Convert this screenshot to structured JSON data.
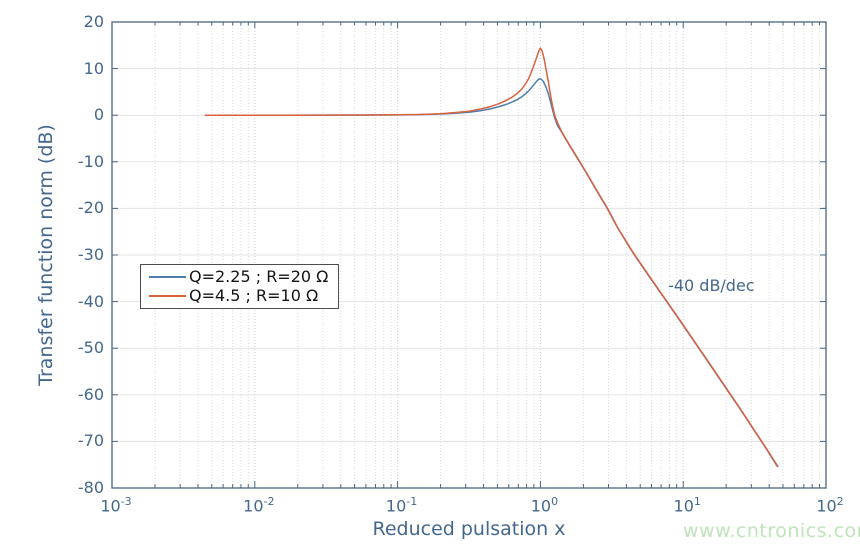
{
  "chart_data": {
    "type": "line",
    "title": "",
    "xlabel": "Reduced pulsation x",
    "ylabel": "Transfer function norm (dB)",
    "x_scale": "log10",
    "xlim_exponents": [
      -3,
      2
    ],
    "ylim": [
      -80,
      20
    ],
    "x_tick_exponents": [
      -3,
      -2,
      -1,
      0,
      1,
      2
    ],
    "y_ticks": [
      20,
      10,
      0,
      -10,
      -20,
      -30,
      -40,
      -50,
      -60,
      -70,
      -80
    ],
    "grid": "on",
    "legend_position": "middle-left",
    "annotation": {
      "text": "-40 dB/dec",
      "log10_x": 0.894,
      "db": -36.9
    },
    "series": [
      {
        "name": "Q=2.25 ; R=20 Ω",
        "color": "#4d7dad",
        "points_log10x_db": [
          [
            -2.35,
            0
          ],
          [
            -2.1,
            0
          ],
          [
            -1.8,
            0.01
          ],
          [
            -1.5,
            0.02
          ],
          [
            -1.2,
            0.04
          ],
          [
            -1.0,
            0.07
          ],
          [
            -0.85,
            0.13
          ],
          [
            -0.7,
            0.26
          ],
          [
            -0.6,
            0.42
          ],
          [
            -0.5,
            0.65
          ],
          [
            -0.42,
            0.95
          ],
          [
            -0.35,
            1.35
          ],
          [
            -0.3,
            1.75
          ],
          [
            -0.25,
            2.2
          ],
          [
            -0.2,
            2.8
          ],
          [
            -0.16,
            3.4
          ],
          [
            -0.13,
            3.95
          ],
          [
            -0.1,
            4.7
          ],
          [
            -0.08,
            5.3
          ],
          [
            -0.06,
            6.0
          ],
          [
            -0.04,
            6.75
          ],
          [
            -0.025,
            7.3
          ],
          [
            -0.01,
            7.8
          ],
          [
            0.005,
            7.75
          ],
          [
            0.02,
            7.25
          ],
          [
            0.04,
            6.0
          ],
          [
            0.055,
            4.6
          ],
          [
            0.07,
            3.0
          ],
          [
            0.085,
            1.2
          ],
          [
            0.1,
            -0.6
          ],
          [
            0.12,
            -2.2
          ],
          [
            0.15,
            -3.7
          ],
          [
            0.2,
            -6.3
          ],
          [
            0.25,
            -8.8
          ],
          [
            0.32,
            -12.3
          ],
          [
            0.4,
            -16.5
          ],
          [
            0.47,
            -20.1
          ],
          [
            0.543,
            -24.3
          ],
          [
            0.65,
            -29.6
          ],
          [
            0.75,
            -34.1
          ],
          [
            0.875,
            -39.6
          ],
          [
            1.0,
            -45.1
          ],
          [
            1.1,
            -49.6
          ],
          [
            1.2,
            -54.1
          ],
          [
            1.3,
            -58.6
          ],
          [
            1.4,
            -63.1
          ],
          [
            1.5,
            -67.8
          ],
          [
            1.585,
            -71.7
          ],
          [
            1.66,
            -75.4
          ]
        ]
      },
      {
        "name": "Q=4.5 ; R=10 Ω",
        "color": "#d9613f",
        "points_log10x_db": [
          [
            -2.35,
            0
          ],
          [
            -2.1,
            0
          ],
          [
            -1.8,
            0.01
          ],
          [
            -1.5,
            0.02
          ],
          [
            -1.2,
            0.05
          ],
          [
            -1.0,
            0.09
          ],
          [
            -0.85,
            0.16
          ],
          [
            -0.7,
            0.33
          ],
          [
            -0.6,
            0.55
          ],
          [
            -0.5,
            0.85
          ],
          [
            -0.42,
            1.3
          ],
          [
            -0.35,
            1.85
          ],
          [
            -0.3,
            2.35
          ],
          [
            -0.25,
            3.0
          ],
          [
            -0.2,
            3.85
          ],
          [
            -0.16,
            4.75
          ],
          [
            -0.13,
            5.6
          ],
          [
            -0.1,
            6.9
          ],
          [
            -0.08,
            8.0
          ],
          [
            -0.06,
            9.5
          ],
          [
            -0.04,
            11.2
          ],
          [
            -0.025,
            12.5
          ],
          [
            -0.01,
            13.9
          ],
          [
            0,
            14.4
          ],
          [
            0.012,
            13.8
          ],
          [
            0.025,
            12.2
          ],
          [
            0.04,
            9.8
          ],
          [
            0.055,
            7.2
          ],
          [
            0.07,
            4.5
          ],
          [
            0.085,
            2.0
          ],
          [
            0.1,
            0.0
          ],
          [
            0.12,
            -1.6
          ],
          [
            0.15,
            -3.6
          ],
          [
            0.2,
            -6.2
          ],
          [
            0.25,
            -8.7
          ],
          [
            0.32,
            -12.2
          ],
          [
            0.4,
            -16.4
          ],
          [
            0.47,
            -20.0
          ],
          [
            0.543,
            -24.2
          ],
          [
            0.65,
            -29.5
          ],
          [
            0.75,
            -34.0
          ],
          [
            0.875,
            -39.5
          ],
          [
            1.0,
            -45.0
          ],
          [
            1.1,
            -49.5
          ],
          [
            1.2,
            -54.0
          ],
          [
            1.3,
            -58.5
          ],
          [
            1.4,
            -63.0
          ],
          [
            1.5,
            -67.7
          ],
          [
            1.585,
            -71.6
          ],
          [
            1.665,
            -75.5
          ]
        ]
      }
    ]
  },
  "watermark": {
    "text": "www.cntronics.com",
    "color": "#bfe3ba"
  },
  "style": {
    "axis_color": "#4a6580",
    "label_color": "#44678e",
    "grid_major_color": "#e3e3e3",
    "grid_minor_color": "#dadada",
    "grid_decade_color": "#c9cdd1",
    "legend_border_color": "#4c4c4c",
    "legend_text_color": "#141414"
  }
}
